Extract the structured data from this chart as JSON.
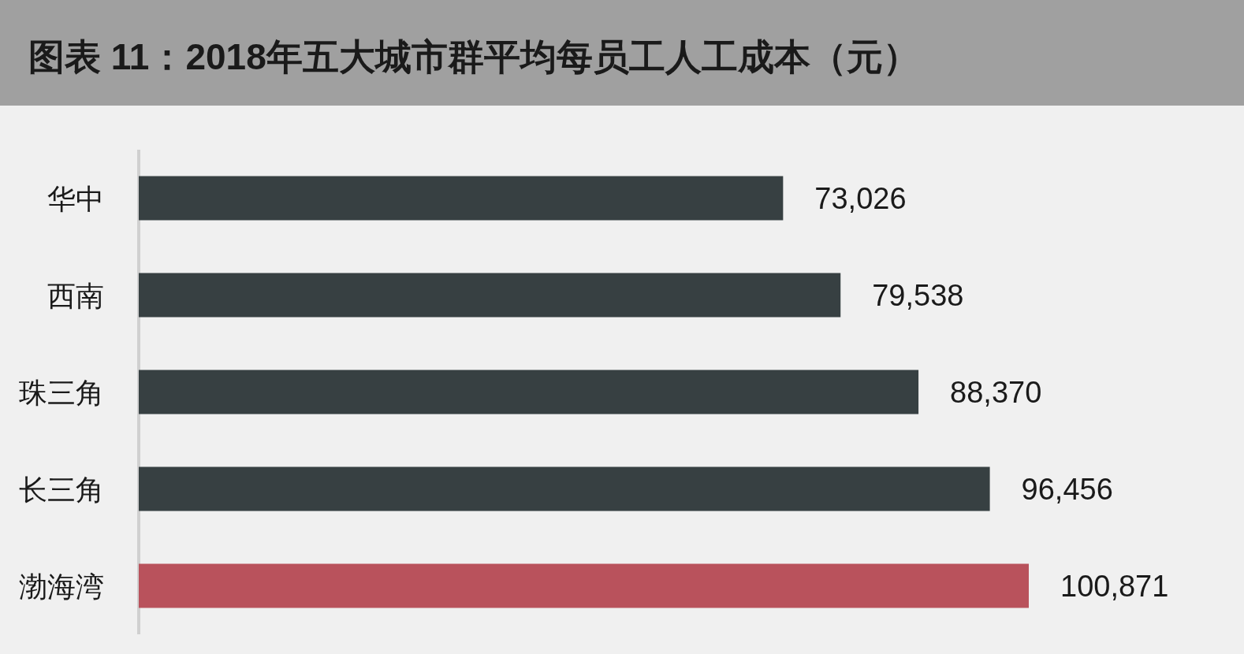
{
  "chart_data": {
    "type": "bar",
    "orientation": "horizontal",
    "title": "图表 11：2018年五大城市群平均每员工人工成本（元）",
    "categories": [
      "华中",
      "西南",
      "珠三角",
      "长三角",
      "渤海湾"
    ],
    "values": [
      73026,
      79538,
      88370,
      96456,
      100871
    ],
    "colors": [
      "#374042",
      "#374042",
      "#374042",
      "#374042",
      "#b9525c"
    ],
    "value_labels": [
      "73,026",
      "79,538",
      "88,370",
      "96,456",
      "100,871"
    ]
  }
}
